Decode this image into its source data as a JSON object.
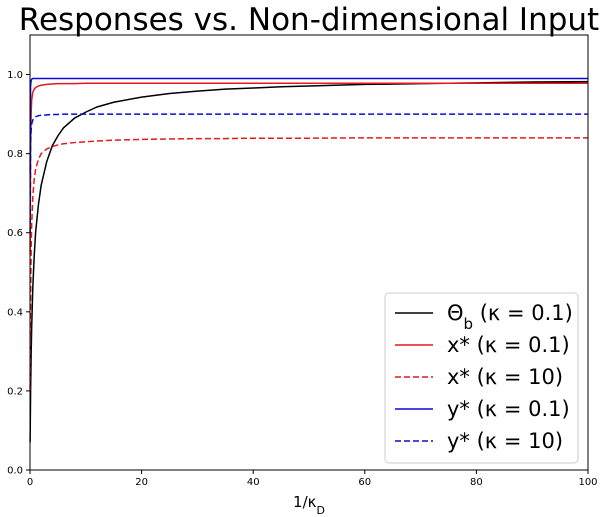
{
  "chart_data": {
    "type": "line",
    "title": "Responses vs. Non-dimensional Input",
    "xlabel": "1/κ_D",
    "ylabel": "",
    "xlim": [
      0,
      100
    ],
    "ylim": [
      0,
      1.1
    ],
    "xticks": [
      0,
      20,
      40,
      60,
      80,
      100
    ],
    "xtick_labels": [
      "0",
      "20",
      "40",
      "60",
      "80",
      "100"
    ],
    "yticks": [
      0,
      0.2,
      0.4,
      0.6,
      0.8,
      1.0
    ],
    "ytick_labels": [
      "0.0",
      "0.2",
      "0.4",
      "0.6",
      "0.8",
      "1.0"
    ],
    "grid": false,
    "legend_position": "lower-right",
    "x": [
      0.02,
      0.1,
      0.2,
      0.3,
      0.5,
      0.75,
      1,
      1.5,
      2,
      3,
      4,
      5,
      6,
      8,
      10,
      12,
      15,
      20,
      25,
      30,
      35,
      40,
      45,
      50,
      60,
      70,
      80,
      90,
      100
    ],
    "series": [
      {
        "name": "Θ_b (κ = 0.1)",
        "color": "#000000",
        "dash": "solid",
        "values": [
          0.07,
          0.19,
          0.29,
          0.36,
          0.46,
          0.54,
          0.6,
          0.67,
          0.72,
          0.78,
          0.82,
          0.845,
          0.865,
          0.89,
          0.905,
          0.918,
          0.93,
          0.943,
          0.952,
          0.958,
          0.963,
          0.966,
          0.969,
          0.971,
          0.975,
          0.977,
          0.979,
          0.981,
          0.982
        ]
      },
      {
        "name": "x* (κ = 0.1)",
        "color": "#e31a1c",
        "dash": "solid",
        "values": [
          0.55,
          0.8,
          0.9,
          0.935,
          0.955,
          0.963,
          0.967,
          0.971,
          0.973,
          0.975,
          0.976,
          0.977,
          0.977,
          0.977,
          0.978,
          0.978,
          0.978,
          0.978,
          0.978,
          0.978,
          0.978,
          0.978,
          0.978,
          0.978,
          0.978,
          0.978,
          0.978,
          0.978,
          0.978
        ]
      },
      {
        "name": "x* (κ = 10)",
        "color": "#e31a1c",
        "dash": "dashed",
        "values": [
          0.2,
          0.42,
          0.55,
          0.62,
          0.69,
          0.735,
          0.76,
          0.785,
          0.8,
          0.812,
          0.818,
          0.822,
          0.825,
          0.828,
          0.83,
          0.832,
          0.834,
          0.836,
          0.837,
          0.838,
          0.838,
          0.839,
          0.839,
          0.839,
          0.84,
          0.84,
          0.84,
          0.84,
          0.84
        ]
      },
      {
        "name": "y* (κ = 0.1)",
        "color": "#0a0ad6",
        "dash": "solid",
        "values": [
          0.75,
          0.97,
          0.985,
          0.988,
          0.99,
          0.99,
          0.99,
          0.99,
          0.99,
          0.99,
          0.99,
          0.99,
          0.99,
          0.99,
          0.99,
          0.99,
          0.99,
          0.99,
          0.99,
          0.99,
          0.99,
          0.99,
          0.99,
          0.99,
          0.99,
          0.99,
          0.99,
          0.99,
          0.99
        ]
      },
      {
        "name": "y* (κ = 10)",
        "color": "#0a0ad6",
        "dash": "dashed",
        "values": [
          0.6,
          0.82,
          0.86,
          0.875,
          0.885,
          0.89,
          0.893,
          0.896,
          0.897,
          0.898,
          0.899,
          0.899,
          0.9,
          0.9,
          0.9,
          0.9,
          0.9,
          0.9,
          0.9,
          0.9,
          0.9,
          0.9,
          0.9,
          0.9,
          0.9,
          0.9,
          0.9,
          0.9,
          0.9
        ]
      }
    ]
  }
}
